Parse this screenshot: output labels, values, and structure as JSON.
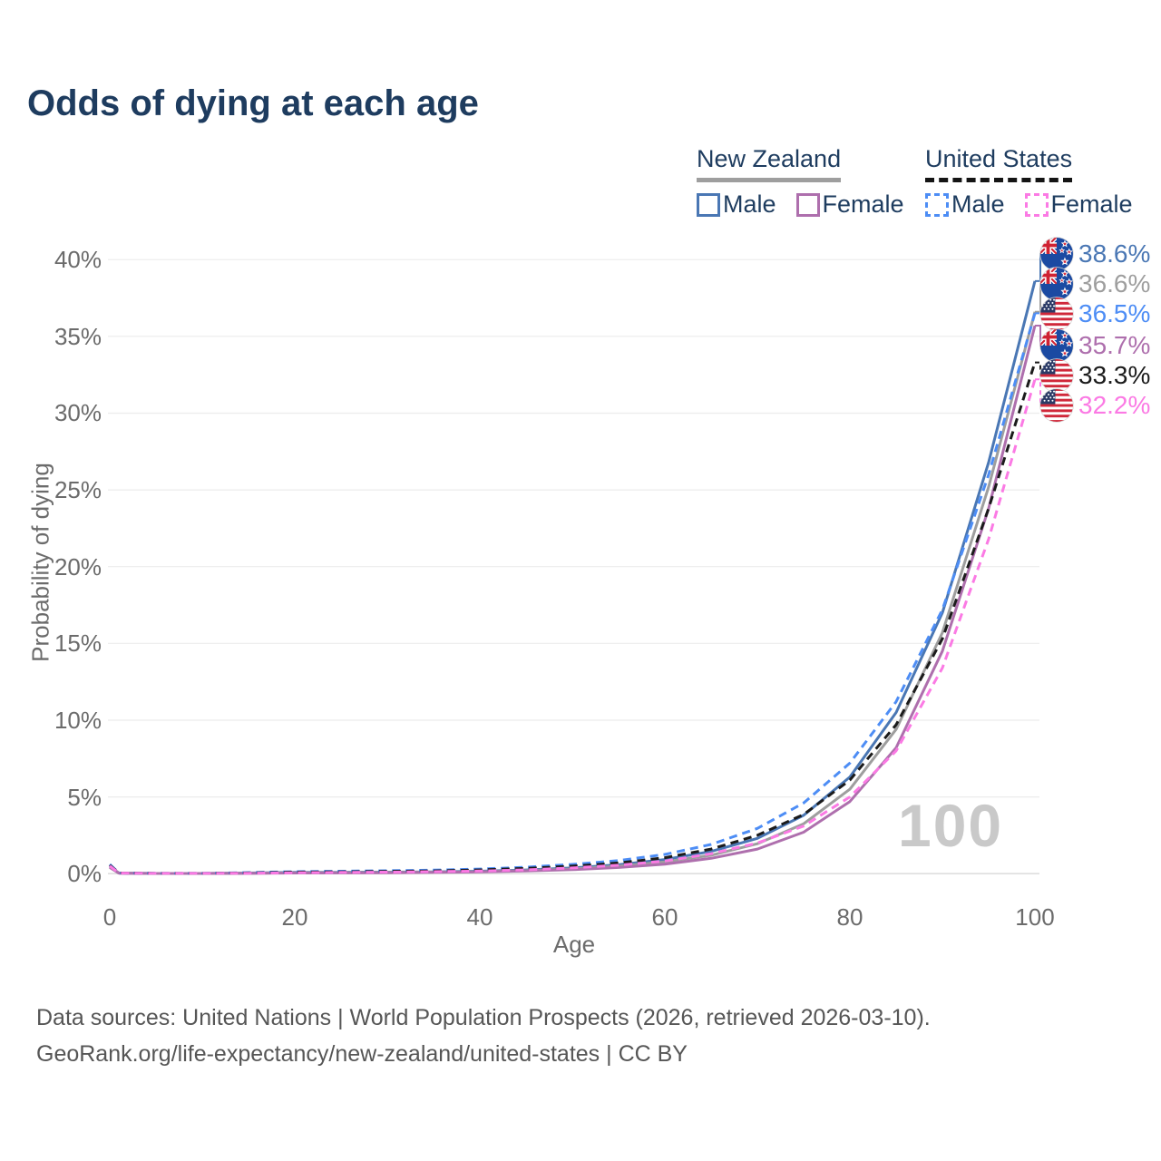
{
  "title": "Odds of dying at each age",
  "legend": {
    "groups": [
      {
        "label": "New Zealand",
        "line_style": "solid",
        "underline_color": "#9e9e9e",
        "items": [
          {
            "label": "Male",
            "color": "#4a77b4"
          },
          {
            "label": "Female",
            "color": "#ae6fad"
          }
        ]
      },
      {
        "label": "United States",
        "line_style": "dashed",
        "underline_color": "#141414",
        "items": [
          {
            "label": "Male",
            "color": "#4d8df5"
          },
          {
            "label": "Female",
            "color": "#fb7ae4"
          }
        ]
      }
    ]
  },
  "watermark": "100",
  "footer": {
    "line1": "Data sources: United Nations | World Population Prospects (2026, retrieved 2026-03-10).",
    "line2": "GeoRank.org/life-expectancy/new-zealand/united-states | CC BY"
  },
  "chart_data": {
    "type": "line",
    "title": "Odds of dying at each age",
    "xlabel": "Age",
    "ylabel": "Probability of dying",
    "xlim": [
      0,
      100
    ],
    "ylim": [
      0,
      40
    ],
    "x_ticks": [
      "0",
      "20",
      "40",
      "60",
      "80",
      "100"
    ],
    "y_ticks": [
      "0%",
      "5%",
      "10%",
      "15%",
      "20%",
      "25%",
      "30%",
      "35%",
      "40%"
    ],
    "grid": "horizontal",
    "legend_position": "top-right",
    "ages": [
      0,
      1,
      5,
      10,
      15,
      20,
      25,
      30,
      35,
      40,
      45,
      50,
      55,
      60,
      65,
      70,
      75,
      80,
      85,
      90,
      95,
      100
    ],
    "series": [
      {
        "name": "New Zealand Male",
        "flag": "nz",
        "color": "#4a77b4",
        "dash": "solid",
        "end_label": "38.6%",
        "end_value": 38.6,
        "values": [
          0.45,
          0.04,
          0.01,
          0.01,
          0.04,
          0.08,
          0.09,
          0.1,
          0.12,
          0.16,
          0.24,
          0.37,
          0.58,
          0.92,
          1.45,
          2.3,
          3.8,
          6.3,
          10.5,
          17.0,
          26.8,
          38.6
        ]
      },
      {
        "name": "New Zealand Both Sexes",
        "flag": "nz",
        "color": "#9e9e9e",
        "dash": "solid",
        "end_label": "36.6%",
        "end_value": 36.6,
        "values": [
          0.43,
          0.035,
          0.01,
          0.01,
          0.03,
          0.06,
          0.07,
          0.08,
          0.1,
          0.13,
          0.2,
          0.31,
          0.49,
          0.77,
          1.2,
          1.95,
          3.25,
          5.5,
          9.4,
          15.7,
          25.2,
          36.6
        ]
      },
      {
        "name": "United States Male",
        "flag": "us",
        "color": "#4d8df5",
        "dash": "dashed",
        "end_label": "36.5%",
        "end_value": 36.5,
        "values": [
          0.6,
          0.04,
          0.02,
          0.02,
          0.07,
          0.13,
          0.16,
          0.19,
          0.23,
          0.3,
          0.42,
          0.6,
          0.85,
          1.25,
          1.9,
          2.95,
          4.6,
          7.2,
          11.2,
          17.2,
          26.0,
          36.5
        ]
      },
      {
        "name": "New Zealand Female",
        "flag": "nz",
        "color": "#ae6fad",
        "dash": "solid",
        "end_label": "35.7%",
        "end_value": 35.7,
        "values": [
          0.4,
          0.03,
          0.01,
          0.01,
          0.02,
          0.04,
          0.05,
          0.06,
          0.08,
          0.11,
          0.17,
          0.26,
          0.4,
          0.62,
          1.0,
          1.6,
          2.7,
          4.7,
          8.2,
          14.5,
          23.8,
          35.7
        ]
      },
      {
        "name": "United States Both Sexes",
        "flag": "us",
        "color": "#1b1b1b",
        "dash": "dashed",
        "end_label": "33.3%",
        "end_value": 33.3,
        "values": [
          0.55,
          0.04,
          0.018,
          0.018,
          0.05,
          0.1,
          0.12,
          0.15,
          0.18,
          0.24,
          0.34,
          0.49,
          0.7,
          1.04,
          1.6,
          2.5,
          3.85,
          6.1,
          9.7,
          15.3,
          23.8,
          33.3
        ]
      },
      {
        "name": "United States Female",
        "flag": "us",
        "color": "#fb7ae4",
        "dash": "dashed",
        "end_label": "32.2%",
        "end_value": 32.2,
        "values": [
          0.5,
          0.035,
          0.015,
          0.015,
          0.03,
          0.06,
          0.08,
          0.1,
          0.13,
          0.17,
          0.25,
          0.37,
          0.55,
          0.82,
          1.3,
          2.0,
          3.1,
          5.0,
          8.0,
          13.4,
          21.8,
          32.2
        ]
      }
    ]
  }
}
